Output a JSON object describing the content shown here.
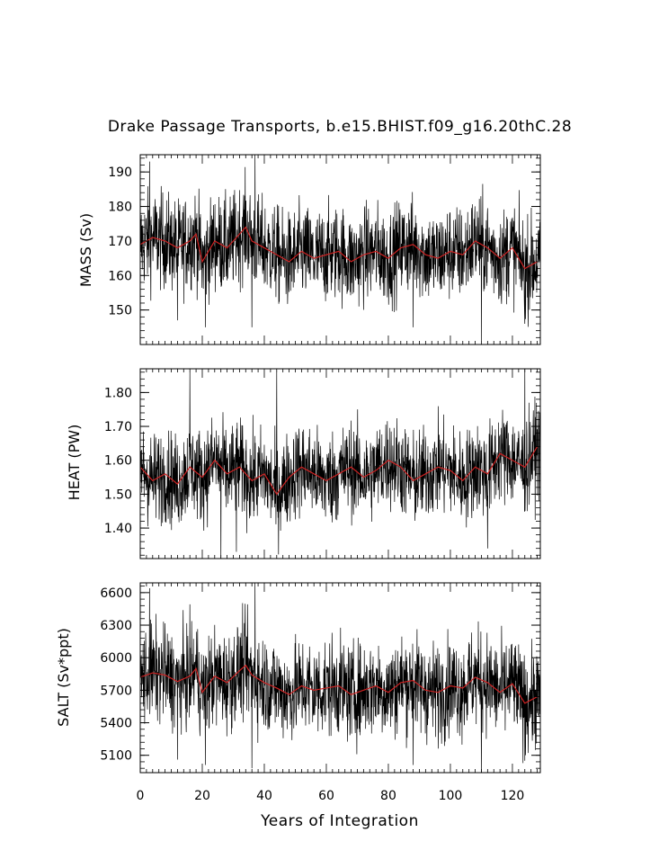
{
  "title": "Drake Passage Transports, b.e15.BHIST.f09_g16.20thC.28",
  "xlabel": "Years of Integration",
  "colors": {
    "monthly": "#000000",
    "annual": "#cc2222",
    "axes": "#000000",
    "background": "#ffffff"
  },
  "chart_data": [
    {
      "type": "line",
      "ylabel": "MASS (Sv)",
      "xlim": [
        0,
        129
      ],
      "ylim": [
        140,
        195
      ],
      "x_ticks": [
        0,
        20,
        40,
        60,
        80,
        100,
        120
      ],
      "y_ticks": [
        150,
        160,
        170,
        180,
        190
      ],
      "y_minor_step": 2,
      "series": [
        {
          "values_desc": "monthly",
          "x_step": 0.0833,
          "mean": 168,
          "spread": 8,
          "color": "#000000",
          "extremes": [
            [
              3,
              193
            ],
            [
              37,
              195
            ],
            [
              36,
              145
            ],
            [
              21,
              145
            ],
            [
              110,
              141
            ],
            [
              12,
              147
            ],
            [
              88,
              145
            ],
            [
              124,
              146
            ]
          ]
        },
        {
          "values_desc": "annual",
          "color": "#cc2222",
          "x": [
            0,
            4,
            8,
            12,
            16,
            18,
            20,
            24,
            28,
            32,
            34,
            36,
            40,
            44,
            48,
            52,
            56,
            60,
            64,
            68,
            72,
            76,
            80,
            84,
            88,
            92,
            96,
            100,
            104,
            108,
            112,
            116,
            120,
            124,
            128
          ],
          "y": [
            169,
            171,
            170,
            168,
            170,
            172,
            164,
            170,
            168,
            172,
            174,
            170,
            168,
            166,
            164,
            167,
            165,
            166,
            167,
            164,
            166,
            167,
            165,
            168,
            169,
            166,
            165,
            167,
            166,
            170,
            168,
            165,
            168,
            162,
            164
          ]
        }
      ]
    },
    {
      "type": "line",
      "ylabel": "HEAT (PW)",
      "xlim": [
        0,
        129
      ],
      "ylim": [
        1.31,
        1.87
      ],
      "x_ticks": [
        0,
        20,
        40,
        60,
        80,
        100,
        120
      ],
      "y_ticks": [
        1.4,
        1.5,
        1.6,
        1.7,
        1.8
      ],
      "y_ticklabels": [
        "1.40",
        "1.50",
        "1.60",
        "1.70",
        "1.80"
      ],
      "y_minor_step": 0.02,
      "series": [
        {
          "values_desc": "monthly",
          "x_step": 0.0833,
          "mean": 1.565,
          "spread": 0.08,
          "color": "#000000",
          "extremes": [
            [
              16,
              1.86
            ],
            [
              44,
              1.86
            ],
            [
              124,
              1.87
            ],
            [
              26,
              1.31
            ],
            [
              31,
              1.33
            ],
            [
              112,
              1.34
            ]
          ]
        },
        {
          "values_desc": "annual",
          "color": "#cc2222",
          "x": [
            0,
            4,
            8,
            12,
            16,
            20,
            24,
            28,
            32,
            36,
            40,
            44,
            48,
            52,
            56,
            60,
            64,
            68,
            72,
            76,
            80,
            84,
            88,
            92,
            96,
            100,
            104,
            108,
            112,
            116,
            120,
            124,
            128
          ],
          "y": [
            1.58,
            1.54,
            1.56,
            1.53,
            1.58,
            1.55,
            1.6,
            1.56,
            1.58,
            1.54,
            1.56,
            1.5,
            1.55,
            1.58,
            1.56,
            1.54,
            1.56,
            1.58,
            1.55,
            1.57,
            1.6,
            1.58,
            1.54,
            1.56,
            1.58,
            1.57,
            1.54,
            1.58,
            1.56,
            1.62,
            1.6,
            1.58,
            1.64
          ]
        }
      ]
    },
    {
      "type": "line",
      "ylabel": "SALT (Sv*ppt)",
      "xlim": [
        0,
        129
      ],
      "ylim": [
        4940,
        6690
      ],
      "x_ticks": [
        0,
        20,
        40,
        60,
        80,
        100,
        120
      ],
      "y_ticks": [
        5100,
        5400,
        5700,
        6000,
        6300,
        6600
      ],
      "y_minor_step": 60,
      "series": [
        {
          "values_desc": "monthly",
          "x_step": 0.0833,
          "mean": 5750,
          "spread": 260,
          "color": "#000000",
          "extremes": [
            [
              3,
              6640
            ],
            [
              37,
              6690
            ],
            [
              36,
              4980
            ],
            [
              21,
              5010
            ],
            [
              110,
              4940
            ],
            [
              12,
              5060
            ],
            [
              88,
              5010
            ],
            [
              124,
              5050
            ]
          ]
        },
        {
          "values_desc": "annual",
          "color": "#cc2222",
          "x": [
            0,
            4,
            8,
            12,
            16,
            18,
            20,
            24,
            28,
            32,
            34,
            36,
            40,
            44,
            48,
            52,
            56,
            60,
            64,
            68,
            72,
            76,
            80,
            84,
            88,
            92,
            96,
            100,
            104,
            108,
            112,
            116,
            120,
            124,
            128
          ],
          "y": [
            5820,
            5860,
            5840,
            5780,
            5830,
            5900,
            5680,
            5830,
            5770,
            5880,
            5930,
            5840,
            5770,
            5720,
            5660,
            5740,
            5700,
            5720,
            5740,
            5660,
            5700,
            5740,
            5680,
            5770,
            5790,
            5700,
            5680,
            5740,
            5720,
            5820,
            5770,
            5680,
            5760,
            5580,
            5640
          ]
        }
      ]
    }
  ]
}
